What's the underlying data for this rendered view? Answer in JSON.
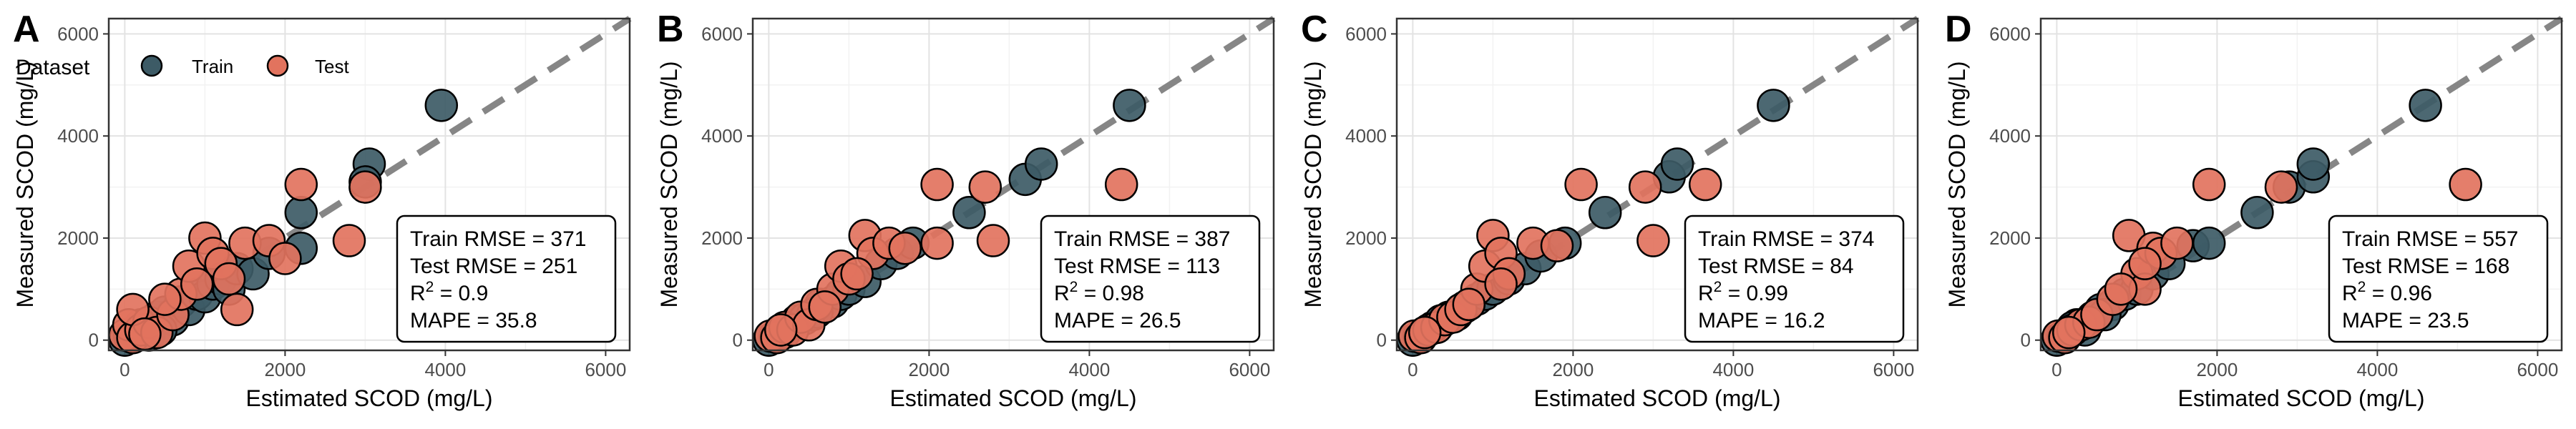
{
  "colors": {
    "train": "#3d5b66",
    "test": "#e2735e",
    "reference_line": "#808080"
  },
  "legend": {
    "title": "Dataset",
    "train_label": "Train",
    "test_label": "Test"
  },
  "chart_data": [
    {
      "panel": "A",
      "type": "scatter",
      "xlabel": "Estimated SCOD (mg/L)",
      "ylabel": "Measured SCOD (mg/L)",
      "xlim": [
        -200,
        6300
      ],
      "ylim": [
        -200,
        6300
      ],
      "xticks": [
        0,
        2000,
        4000,
        6000
      ],
      "yticks": [
        0,
        2000,
        4000,
        6000
      ],
      "grid": true,
      "reference_line": "y = x",
      "metrics": [
        {
          "label": "Train RMSE = 371"
        },
        {
          "label": "Test RMSE = 251"
        },
        {
          "base": "R",
          "sup": "2",
          "rest": " = 0.9"
        },
        {
          "label": "MAPE = 35.8"
        }
      ],
      "series": [
        {
          "name": "Train",
          "points": [
            [
              0,
              0
            ],
            [
              60,
              80
            ],
            [
              150,
              150
            ],
            [
              250,
              300
            ],
            [
              300,
              100
            ],
            [
              400,
              450
            ],
            [
              500,
              550
            ],
            [
              600,
              400
            ],
            [
              700,
              750
            ],
            [
              800,
              600
            ],
            [
              900,
              900
            ],
            [
              1000,
              850
            ],
            [
              1100,
              1100
            ],
            [
              1200,
              1200
            ],
            [
              1300,
              1000
            ],
            [
              1400,
              1400
            ],
            [
              1600,
              1300
            ],
            [
              1800,
              1700
            ],
            [
              2200,
              1800
            ],
            [
              2200,
              2500
            ],
            [
              3050,
              3450
            ],
            [
              3000,
              3100
            ],
            [
              3950,
              4600
            ],
            [
              200,
              300
            ],
            [
              450,
              200
            ]
          ]
        },
        {
          "name": "Test",
          "points": [
            [
              0,
              100
            ],
            [
              50,
              300
            ],
            [
              100,
              50
            ],
            [
              200,
              200
            ],
            [
              300,
              350
            ],
            [
              400,
              150
            ],
            [
              600,
              500
            ],
            [
              700,
              900
            ],
            [
              800,
              1450
            ],
            [
              1000,
              2000
            ],
            [
              1100,
              1700
            ],
            [
              1200,
              1500
            ],
            [
              1300,
              1200
            ],
            [
              1400,
              600
            ],
            [
              1500,
              1900
            ],
            [
              1800,
              1950
            ],
            [
              2000,
              1600
            ],
            [
              2200,
              3050
            ],
            [
              2800,
              1950
            ],
            [
              3000,
              3000
            ],
            [
              100,
              600
            ],
            [
              250,
              120
            ],
            [
              500,
              800
            ],
            [
              900,
              1100
            ]
          ]
        }
      ]
    },
    {
      "panel": "B",
      "type": "scatter",
      "xlabel": "Estimated SCOD (mg/L)",
      "ylabel": "Measured SCOD (mg/L)",
      "xlim": [
        -200,
        6300
      ],
      "ylim": [
        -200,
        6300
      ],
      "xticks": [
        0,
        2000,
        4000,
        6000
      ],
      "yticks": [
        0,
        2000,
        4000,
        6000
      ],
      "grid": true,
      "reference_line": "y = x",
      "metrics": [
        {
          "label": "Train RMSE = 387"
        },
        {
          "label": "Test RMSE = 113"
        },
        {
          "base": "R",
          "sup": "2",
          "rest": " = 0.98"
        },
        {
          "label": "MAPE = 26.5"
        }
      ],
      "series": [
        {
          "name": "Train",
          "points": [
            [
              0,
              0
            ],
            [
              80,
              80
            ],
            [
              150,
              120
            ],
            [
              250,
              250
            ],
            [
              350,
              380
            ],
            [
              450,
              420
            ],
            [
              550,
              500
            ],
            [
              650,
              700
            ],
            [
              800,
              750
            ],
            [
              900,
              900
            ],
            [
              1000,
              1000
            ],
            [
              1200,
              1150
            ],
            [
              1400,
              1500
            ],
            [
              1600,
              1700
            ],
            [
              1800,
              1900
            ],
            [
              2500,
              2500
            ],
            [
              3200,
              3150
            ],
            [
              3400,
              3450
            ],
            [
              4500,
              4600
            ],
            [
              200,
              150
            ],
            [
              600,
              550
            ]
          ]
        },
        {
          "name": "Test",
          "points": [
            [
              20,
              80
            ],
            [
              100,
              50
            ],
            [
              200,
              250
            ],
            [
              300,
              200
            ],
            [
              400,
              450
            ],
            [
              500,
              300
            ],
            [
              600,
              700
            ],
            [
              800,
              1000
            ],
            [
              900,
              1450
            ],
            [
              1000,
              1200
            ],
            [
              1200,
              2050
            ],
            [
              1300,
              1700
            ],
            [
              1500,
              1900
            ],
            [
              1700,
              1800
            ],
            [
              2100,
              3050
            ],
            [
              2100,
              1900
            ],
            [
              2700,
              3000
            ],
            [
              2800,
              1950
            ],
            [
              4400,
              3050
            ],
            [
              150,
              200
            ],
            [
              700,
              650
            ],
            [
              1100,
              1300
            ]
          ]
        }
      ]
    },
    {
      "panel": "C",
      "type": "scatter",
      "xlabel": "Estimated SCOD (mg/L)",
      "ylabel": "Measured SCOD (mg/L)",
      "xlim": [
        -200,
        6300
      ],
      "ylim": [
        -200,
        6300
      ],
      "xticks": [
        0,
        2000,
        4000,
        6000
      ],
      "yticks": [
        0,
        2000,
        4000,
        6000
      ],
      "grid": true,
      "reference_line": "y = x",
      "metrics": [
        {
          "label": "Train RMSE = 374"
        },
        {
          "label": "Test RMSE = 84"
        },
        {
          "base": "R",
          "sup": "2",
          "rest": " = 0.99"
        },
        {
          "label": "MAPE = 16.2"
        }
      ],
      "series": [
        {
          "name": "Train",
          "points": [
            [
              0,
              0
            ],
            [
              80,
              80
            ],
            [
              150,
              150
            ],
            [
              250,
              250
            ],
            [
              350,
              380
            ],
            [
              450,
              450
            ],
            [
              550,
              500
            ],
            [
              650,
              650
            ],
            [
              800,
              800
            ],
            [
              900,
              900
            ],
            [
              1000,
              1000
            ],
            [
              1200,
              1200
            ],
            [
              1400,
              1400
            ],
            [
              1600,
              1650
            ],
            [
              1900,
              1900
            ],
            [
              2400,
              2500
            ],
            [
              3200,
              3200
            ],
            [
              3300,
              3450
            ],
            [
              4500,
              4600
            ],
            [
              200,
              200
            ],
            [
              600,
              600
            ]
          ]
        },
        {
          "name": "Test",
          "points": [
            [
              20,
              80
            ],
            [
              100,
              50
            ],
            [
              200,
              200
            ],
            [
              300,
              250
            ],
            [
              400,
              400
            ],
            [
              500,
              450
            ],
            [
              600,
              600
            ],
            [
              800,
              1000
            ],
            [
              900,
              1450
            ],
            [
              1000,
              2050
            ],
            [
              1100,
              1700
            ],
            [
              1200,
              1300
            ],
            [
              1500,
              1900
            ],
            [
              1800,
              1850
            ],
            [
              2100,
              3050
            ],
            [
              2900,
              3000
            ],
            [
              3000,
              1950
            ],
            [
              3650,
              3050
            ],
            [
              150,
              150
            ],
            [
              700,
              700
            ],
            [
              1100,
              1100
            ]
          ]
        }
      ]
    },
    {
      "panel": "D",
      "type": "scatter",
      "xlabel": "Estimated SCOD (mg/L)",
      "ylabel": "Measured SCOD (mg/L)",
      "xlim": [
        -200,
        6300
      ],
      "ylim": [
        -200,
        6300
      ],
      "xticks": [
        0,
        2000,
        4000,
        6000
      ],
      "yticks": [
        0,
        2000,
        4000,
        6000
      ],
      "grid": true,
      "reference_line": "y = x",
      "metrics": [
        {
          "label": "Train RMSE = 557"
        },
        {
          "label": "Test RMSE = 168"
        },
        {
          "base": "R",
          "sup": "2",
          "rest": " = 0.96"
        },
        {
          "label": "MAPE = 23.5"
        }
      ],
      "series": [
        {
          "name": "Train",
          "points": [
            [
              0,
              0
            ],
            [
              80,
              80
            ],
            [
              150,
              150
            ],
            [
              250,
              300
            ],
            [
              350,
              200
            ],
            [
              450,
              450
            ],
            [
              550,
              600
            ],
            [
              700,
              700
            ],
            [
              850,
              900
            ],
            [
              1000,
              1000
            ],
            [
              1200,
              1300
            ],
            [
              1400,
              1500
            ],
            [
              1700,
              1850
            ],
            [
              1900,
              1900
            ],
            [
              2900,
              3000
            ],
            [
              2500,
              2500
            ],
            [
              3200,
              3200
            ],
            [
              3200,
              3450
            ],
            [
              4600,
              4600
            ],
            [
              200,
              250
            ],
            [
              600,
              500
            ]
          ]
        },
        {
          "name": "Test",
          "points": [
            [
              20,
              80
            ],
            [
              100,
              50
            ],
            [
              200,
              200
            ],
            [
              300,
              300
            ],
            [
              400,
              350
            ],
            [
              500,
              500
            ],
            [
              700,
              800
            ],
            [
              900,
              2050
            ],
            [
              1000,
              1300
            ],
            [
              1100,
              1000
            ],
            [
              1200,
              1800
            ],
            [
              1300,
              1700
            ],
            [
              1500,
              1900
            ],
            [
              1900,
              3050
            ],
            [
              2800,
              3000
            ],
            [
              5100,
              3050
            ],
            [
              3700,
              1950
            ],
            [
              150,
              150
            ],
            [
              800,
              1000
            ],
            [
              1100,
              1500
            ]
          ]
        }
      ]
    }
  ]
}
